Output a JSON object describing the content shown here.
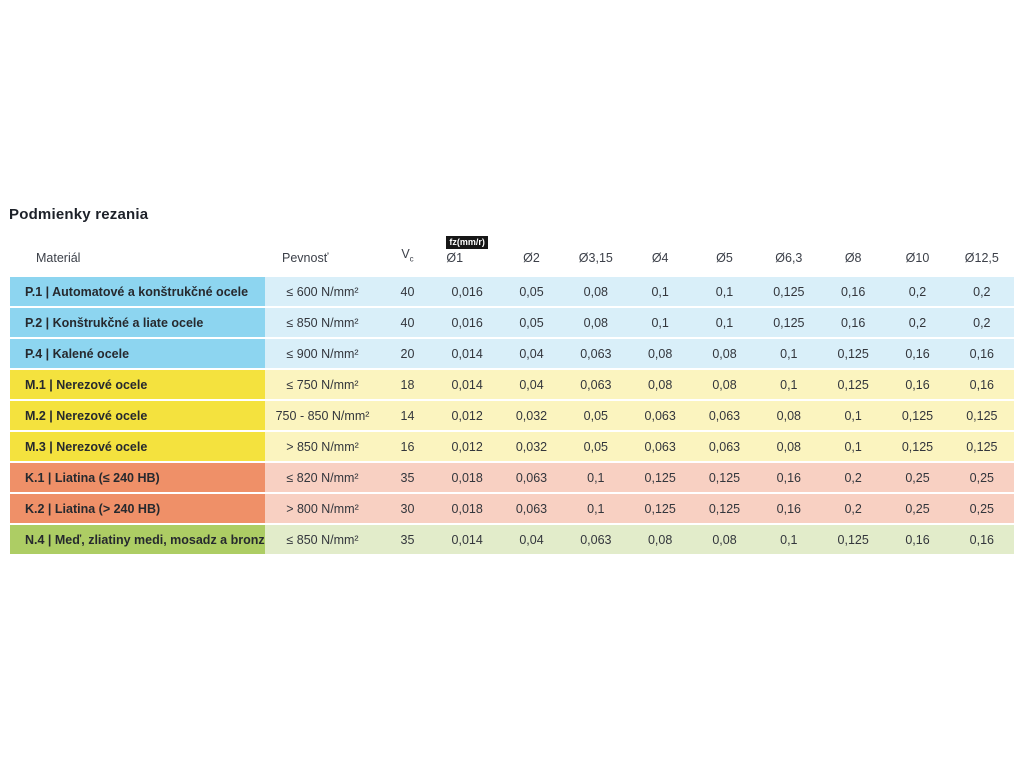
{
  "title": "Podmienky rezania",
  "table": {
    "headers": {
      "material": "Materiál",
      "pevnost": "Pevnosť",
      "vc_main": "V",
      "vc_sub": "c",
      "fz_badge": "fz(mm/r)",
      "diameters": [
        "Ø1",
        "Ø2",
        "Ø3,15",
        "Ø4",
        "Ø5",
        "Ø6,3",
        "Ø8",
        "Ø10",
        "Ø12,5"
      ]
    },
    "colors": {
      "blue": {
        "strong": "#8dd5f0",
        "light": "#d9eff9"
      },
      "yellow": {
        "strong": "#f4e23e",
        "light": "#fbf4bf"
      },
      "salmon": {
        "strong": "#ef9068",
        "light": "#f8d0c2"
      },
      "green": {
        "strong": "#adcd64",
        "light": "#e2ecca"
      }
    },
    "rows": [
      {
        "name": "P.1 | Automatové a konštrukčné ocele",
        "pevnost": "≤ 600 N/mm²",
        "vc": "40",
        "color_group": "blue",
        "fz": [
          "0,016",
          "0,05",
          "0,08",
          "0,1",
          "0,1",
          "0,125",
          "0,16",
          "0,2",
          "0,2"
        ]
      },
      {
        "name": "P.2 | Konštrukčné a liate ocele",
        "pevnost": "≤ 850 N/mm²",
        "vc": "40",
        "color_group": "blue",
        "fz": [
          "0,016",
          "0,05",
          "0,08",
          "0,1",
          "0,1",
          "0,125",
          "0,16",
          "0,2",
          "0,2"
        ]
      },
      {
        "name": "P.4 | Kalené ocele",
        "pevnost": "≤ 900 N/mm²",
        "vc": "20",
        "color_group": "blue",
        "fz": [
          "0,014",
          "0,04",
          "0,063",
          "0,08",
          "0,08",
          "0,1",
          "0,125",
          "0,16",
          "0,16"
        ]
      },
      {
        "name": "M.1 | Nerezové ocele",
        "pevnost": "≤ 750 N/mm²",
        "vc": "18",
        "color_group": "yellow",
        "fz": [
          "0,014",
          "0,04",
          "0,063",
          "0,08",
          "0,08",
          "0,1",
          "0,125",
          "0,16",
          "0,16"
        ]
      },
      {
        "name": "M.2 | Nerezové ocele",
        "pevnost": "750 - 850 N/mm²",
        "vc": "14",
        "color_group": "yellow",
        "fz": [
          "0,012",
          "0,032",
          "0,05",
          "0,063",
          "0,063",
          "0,08",
          "0,1",
          "0,125",
          "0,125"
        ]
      },
      {
        "name": "M.3 | Nerezové ocele",
        "pevnost": "> 850 N/mm²",
        "vc": "16",
        "color_group": "yellow",
        "fz": [
          "0,012",
          "0,032",
          "0,05",
          "0,063",
          "0,063",
          "0,08",
          "0,1",
          "0,125",
          "0,125"
        ]
      },
      {
        "name": "K.1 | Liatina (≤ 240 HB)",
        "pevnost": "≤ 820 N/mm²",
        "vc": "35",
        "color_group": "salmon",
        "fz": [
          "0,018",
          "0,063",
          "0,1",
          "0,125",
          "0,125",
          "0,16",
          "0,2",
          "0,25",
          "0,25"
        ]
      },
      {
        "name": "K.2 | Liatina (> 240 HB)",
        "pevnost": "> 800 N/mm²",
        "vc": "30",
        "color_group": "salmon",
        "fz": [
          "0,018",
          "0,063",
          "0,1",
          "0,125",
          "0,125",
          "0,16",
          "0,2",
          "0,25",
          "0,25"
        ]
      },
      {
        "name": "N.4 | Meď, zliatiny medi, mosadz a bronz",
        "pevnost": "≤ 850 N/mm²",
        "vc": "35",
        "color_group": "green",
        "fz": [
          "0,014",
          "0,04",
          "0,063",
          "0,08",
          "0,08",
          "0,1",
          "0,125",
          "0,16",
          "0,16"
        ]
      }
    ]
  }
}
